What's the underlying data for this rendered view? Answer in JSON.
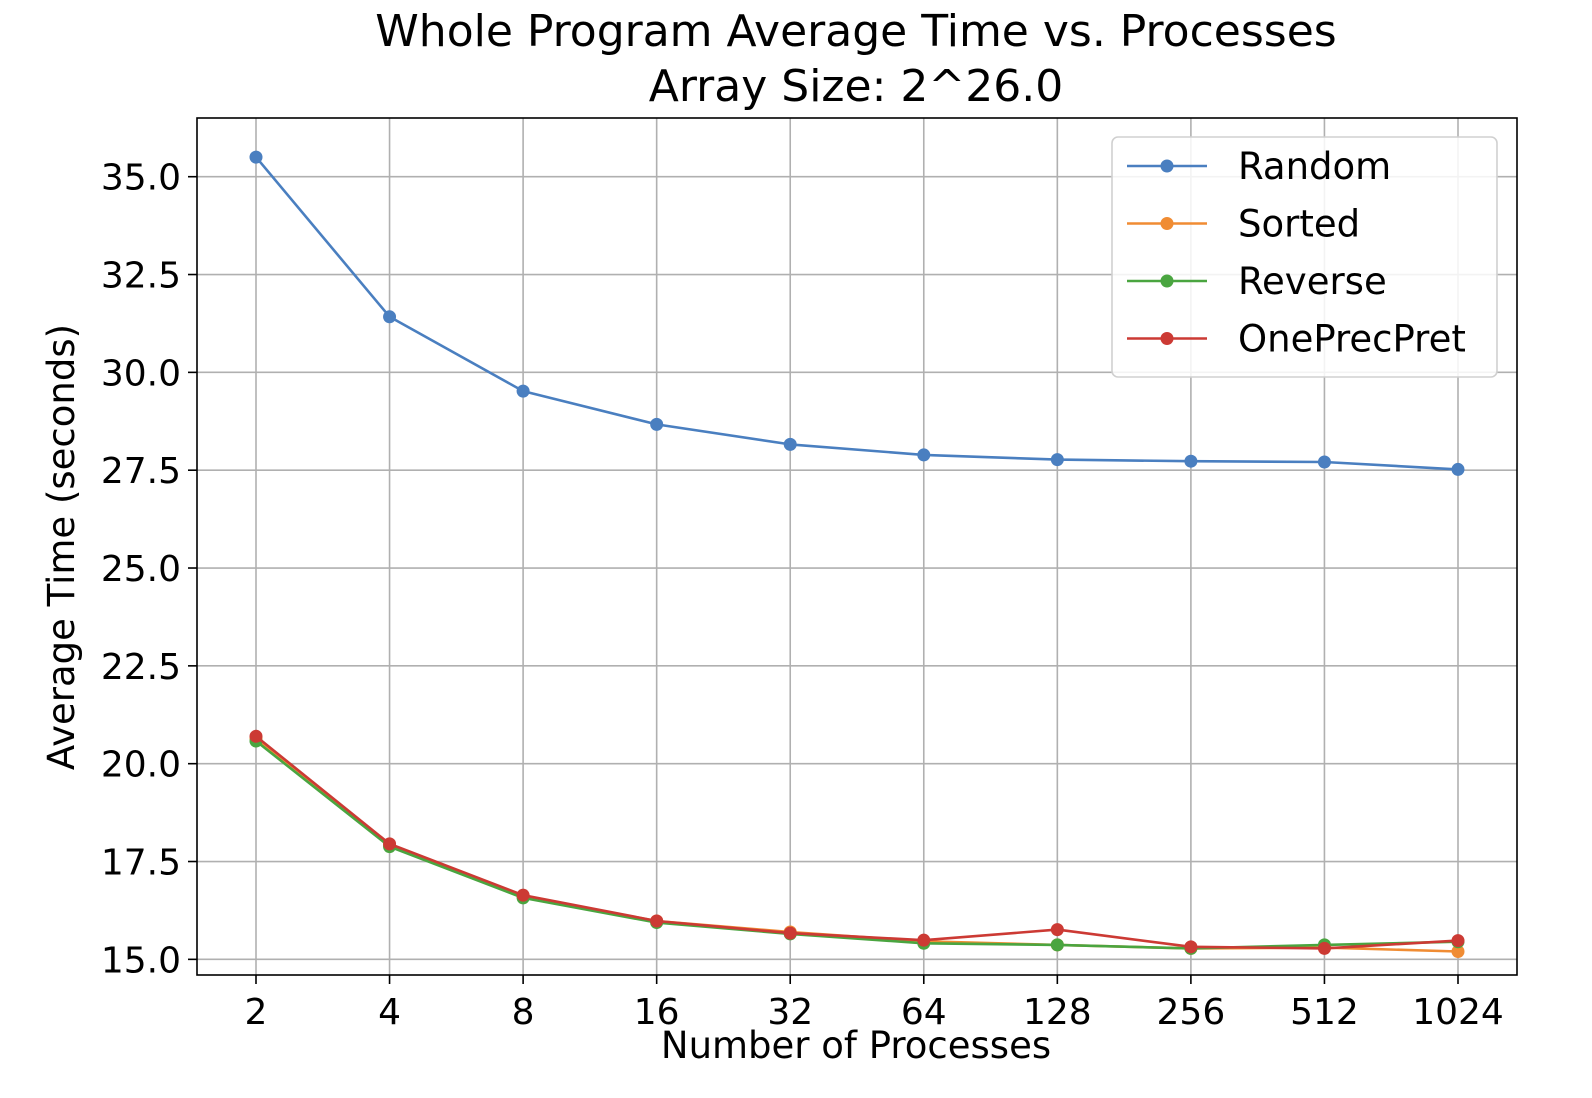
{
  "chart_data": {
    "type": "line",
    "title": "Whole Program Average Time vs. Processes",
    "subtitle": "Array Size: 2^26.0",
    "xlabel": "Number of Processes",
    "ylabel": "Average Time (seconds)",
    "x_scale": "log2",
    "categories": [
      "2",
      "4",
      "8",
      "16",
      "32",
      "64",
      "128",
      "256",
      "512",
      "1024"
    ],
    "x": [
      2,
      4,
      8,
      16,
      32,
      64,
      128,
      256,
      512,
      1024
    ],
    "yticks": [
      "15.0",
      "17.5",
      "20.0",
      "22.5",
      "25.0",
      "27.5",
      "30.0",
      "32.5",
      "35.0"
    ],
    "ylim": [
      14.6,
      36.5
    ],
    "grid": true,
    "legend_position": "top-right",
    "series": [
      {
        "name": "Random",
        "color": "#4a7fc0",
        "values": [
          35.5,
          31.42,
          29.52,
          28.67,
          28.16,
          27.89,
          27.77,
          27.73,
          27.71,
          27.52
        ]
      },
      {
        "name": "Sorted",
        "color": "#f08c33",
        "values": [
          20.65,
          17.93,
          16.61,
          15.98,
          15.7,
          15.46,
          15.37,
          15.28,
          15.3,
          15.2
        ]
      },
      {
        "name": "Reverse",
        "color": "#4aa540",
        "values": [
          20.58,
          17.88,
          16.57,
          15.94,
          15.65,
          15.41,
          15.37,
          15.28,
          15.37,
          15.45
        ]
      },
      {
        "name": "OnePrecPret",
        "color": "#cc3a34",
        "values": [
          20.7,
          17.95,
          16.64,
          15.98,
          15.67,
          15.49,
          15.76,
          15.32,
          15.28,
          15.48
        ]
      }
    ]
  }
}
